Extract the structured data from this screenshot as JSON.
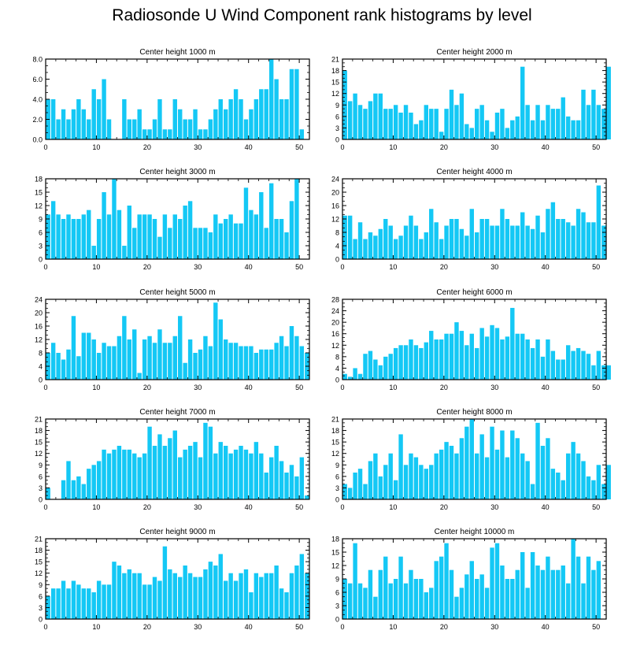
{
  "title": "Radiosonde U Wind Component rank histograms by level",
  "colors": {
    "bar": "#14c8f5",
    "axis": "#000000"
  },
  "chart_data": [
    {
      "type": "bar",
      "title": "Center height 1000 m",
      "xlim": [
        0,
        52
      ],
      "ylim": [
        0,
        8
      ],
      "yticks": [
        "0.0",
        "2.0",
        "4.0",
        "6.0",
        "8.0"
      ],
      "ytick_values": [
        0,
        2,
        4,
        6,
        8
      ],
      "xticks": [
        "0",
        "10",
        "20",
        "30",
        "40",
        "50"
      ],
      "xtick_values": [
        0,
        10,
        20,
        30,
        40,
        50
      ],
      "values": [
        4,
        4,
        2,
        3,
        2,
        3,
        4,
        3,
        2,
        5,
        4,
        6,
        2,
        0,
        0,
        4,
        2,
        2,
        3,
        1,
        1,
        2,
        4,
        1,
        1,
        4,
        3,
        2,
        2,
        3,
        1,
        1,
        2,
        3,
        4,
        3,
        4,
        5,
        4,
        2,
        3,
        4,
        5,
        5,
        8,
        6,
        4,
        4,
        7,
        7,
        1
      ]
    },
    {
      "type": "bar",
      "title": "Center height 2000 m",
      "xlim": [
        0,
        52
      ],
      "ylim": [
        0,
        21
      ],
      "yticks": [
        "0",
        "3",
        "6",
        "9",
        "12",
        "15",
        "18",
        "21"
      ],
      "ytick_values": [
        0,
        3,
        6,
        9,
        12,
        15,
        18,
        21
      ],
      "xticks": [
        "0",
        "10",
        "20",
        "30",
        "40",
        "50"
      ],
      "xtick_values": [
        0,
        10,
        20,
        30,
        40,
        50
      ],
      "values": [
        18,
        10,
        12,
        9,
        8,
        10,
        12,
        12,
        8,
        8,
        9,
        7,
        9,
        7,
        4,
        5,
        9,
        8,
        8,
        2,
        8,
        13,
        9,
        12,
        4,
        3,
        8,
        9,
        5,
        2,
        7,
        8,
        3,
        5,
        6,
        19,
        9,
        5,
        9,
        5,
        9,
        8,
        8,
        11,
        6,
        5,
        5,
        13,
        9,
        13,
        9,
        8,
        19
      ]
    },
    {
      "type": "bar",
      "title": "Center height 3000 m",
      "xlim": [
        0,
        52
      ],
      "ylim": [
        0,
        18
      ],
      "yticks": [
        "0",
        "3",
        "6",
        "9",
        "12",
        "15",
        "18"
      ],
      "ytick_values": [
        0,
        3,
        6,
        9,
        12,
        15,
        18
      ],
      "xticks": [
        "0",
        "10",
        "20",
        "30",
        "40",
        "50"
      ],
      "xtick_values": [
        0,
        10,
        20,
        30,
        40,
        50
      ],
      "values": [
        10,
        13,
        10,
        9,
        10,
        9,
        9,
        10,
        11,
        3,
        9,
        15,
        10,
        18,
        11,
        3,
        12,
        7,
        10,
        10,
        10,
        9,
        5,
        10,
        7,
        10,
        9,
        12,
        13,
        7,
        7,
        7,
        6,
        10,
        8,
        9,
        10,
        8,
        8,
        16,
        11,
        10,
        15,
        7,
        17,
        9,
        9,
        6,
        13,
        18
      ]
    },
    {
      "type": "bar",
      "title": "Center height 4000 m",
      "xlim": [
        0,
        52
      ],
      "ylim": [
        0,
        24
      ],
      "yticks": [
        "0",
        "4",
        "8",
        "12",
        "16",
        "20",
        "24"
      ],
      "ytick_values": [
        0,
        4,
        8,
        12,
        16,
        20,
        24
      ],
      "xticks": [
        "0",
        "10",
        "20",
        "30",
        "40",
        "50"
      ],
      "xtick_values": [
        0,
        10,
        20,
        30,
        40,
        50
      ],
      "values": [
        13,
        13,
        6,
        11,
        6,
        8,
        7,
        9,
        12,
        10,
        6,
        7,
        10,
        13,
        10,
        6,
        8,
        15,
        11,
        6,
        10,
        12,
        12,
        9,
        7,
        15,
        8,
        12,
        12,
        10,
        10,
        15,
        12,
        10,
        10,
        14,
        10,
        9,
        13,
        8,
        15,
        17,
        12,
        12,
        11,
        10,
        15,
        14,
        11,
        11,
        22,
        10
      ]
    },
    {
      "type": "bar",
      "title": "Center height 5000 m",
      "xlim": [
        0,
        52
      ],
      "ylim": [
        0,
        24
      ],
      "yticks": [
        "0",
        "4",
        "8",
        "12",
        "16",
        "20",
        "24"
      ],
      "ytick_values": [
        0,
        4,
        8,
        12,
        16,
        20,
        24
      ],
      "xticks": [
        "0",
        "10",
        "20",
        "30",
        "40",
        "50"
      ],
      "xtick_values": [
        0,
        10,
        20,
        30,
        40,
        50
      ],
      "values": [
        8,
        11,
        8,
        6,
        9,
        19,
        7,
        14,
        14,
        12,
        8,
        11,
        10,
        10,
        13,
        19,
        12,
        15,
        2,
        12,
        13,
        11,
        15,
        11,
        11,
        13,
        19,
        5,
        12,
        8,
        9,
        13,
        10,
        23,
        18,
        12,
        11,
        11,
        10,
        10,
        10,
        8,
        9,
        9,
        9,
        11,
        13,
        10,
        16,
        13,
        10,
        8
      ]
    },
    {
      "type": "bar",
      "title": "Center height 6000 m",
      "xlim": [
        0,
        52
      ],
      "ylim": [
        0,
        28
      ],
      "yticks": [
        "0",
        "4",
        "8",
        "12",
        "16",
        "20",
        "24",
        "28"
      ],
      "ytick_values": [
        0,
        4,
        8,
        12,
        16,
        20,
        24,
        28
      ],
      "xticks": [
        "0",
        "10",
        "20",
        "30",
        "40",
        "50"
      ],
      "xtick_values": [
        0,
        10,
        20,
        30,
        40,
        50
      ],
      "values": [
        2,
        1,
        4,
        2,
        9,
        10,
        7,
        5,
        8,
        9,
        11,
        12,
        12,
        14,
        12,
        11,
        13,
        17,
        14,
        14,
        16,
        16,
        20,
        17,
        12,
        16,
        11,
        18,
        15,
        19,
        18,
        14,
        15,
        25,
        16,
        16,
        14,
        11,
        14,
        8,
        14,
        10,
        7,
        7,
        12,
        10,
        11,
        10,
        9,
        5,
        10,
        5,
        5
      ]
    },
    {
      "type": "bar",
      "title": "Center height 7000 m",
      "xlim": [
        0,
        52
      ],
      "ylim": [
        0,
        21
      ],
      "yticks": [
        "0",
        "3",
        "6",
        "9",
        "12",
        "15",
        "18",
        "21"
      ],
      "ytick_values": [
        0,
        3,
        6,
        9,
        12,
        15,
        18,
        21
      ],
      "xticks": [
        "0",
        "10",
        "20",
        "30",
        "40",
        "50"
      ],
      "xtick_values": [
        0,
        10,
        20,
        30,
        40,
        50
      ],
      "values": [
        3,
        0,
        0,
        5,
        10,
        5,
        6,
        4,
        8,
        9,
        10,
        13,
        12,
        13,
        14,
        13,
        13,
        12,
        11,
        12,
        19,
        14,
        17,
        14,
        16,
        18,
        11,
        13,
        14,
        15,
        11,
        20,
        19,
        12,
        15,
        14,
        12,
        13,
        14,
        13,
        12,
        15,
        12,
        7,
        11,
        14,
        10,
        7,
        9,
        6,
        11,
        1
      ]
    },
    {
      "type": "bar",
      "title": "Center height 8000 m",
      "xlim": [
        0,
        52
      ],
      "ylim": [
        0,
        21
      ],
      "yticks": [
        "0",
        "3",
        "6",
        "9",
        "12",
        "15",
        "18",
        "21"
      ],
      "ytick_values": [
        0,
        3,
        6,
        9,
        12,
        15,
        18,
        21
      ],
      "xticks": [
        "0",
        "10",
        "20",
        "30",
        "40",
        "50"
      ],
      "xtick_values": [
        0,
        10,
        20,
        30,
        40,
        50
      ],
      "values": [
        4,
        3,
        7,
        8,
        4,
        10,
        12,
        6,
        9,
        12,
        5,
        17,
        9,
        12,
        11,
        9,
        8,
        9,
        12,
        13,
        15,
        14,
        12,
        16,
        19,
        21,
        12,
        17,
        11,
        19,
        13,
        18,
        11,
        18,
        16,
        12,
        10,
        4,
        20,
        14,
        16,
        8,
        7,
        5,
        12,
        15,
        12,
        10,
        6,
        5,
        9,
        4,
        9
      ]
    },
    {
      "type": "bar",
      "title": "Center height 9000 m",
      "xlim": [
        0,
        52
      ],
      "ylim": [
        0,
        21
      ],
      "yticks": [
        "0",
        "3",
        "6",
        "9",
        "12",
        "15",
        "18",
        "21"
      ],
      "ytick_values": [
        0,
        3,
        6,
        9,
        12,
        15,
        18,
        21
      ],
      "xticks": [
        "0",
        "10",
        "20",
        "30",
        "40",
        "50"
      ],
      "xtick_values": [
        0,
        10,
        20,
        30,
        40,
        50
      ],
      "values": [
        6,
        8,
        8,
        10,
        8,
        10,
        9,
        8,
        8,
        7,
        10,
        9,
        9,
        15,
        14,
        12,
        13,
        12,
        12,
        9,
        9,
        11,
        10,
        19,
        13,
        12,
        11,
        14,
        12,
        11,
        11,
        13,
        15,
        14,
        17,
        10,
        12,
        10,
        12,
        13,
        7,
        12,
        11,
        12,
        12,
        14,
        8,
        7,
        12,
        14,
        17,
        12
      ]
    },
    {
      "type": "bar",
      "title": "Center height 10000 m",
      "xlim": [
        0,
        52
      ],
      "ylim": [
        0,
        18
      ],
      "yticks": [
        "0",
        "3",
        "6",
        "9",
        "12",
        "15",
        "18"
      ],
      "ytick_values": [
        0,
        3,
        6,
        9,
        12,
        15,
        18
      ],
      "xticks": [
        "0",
        "10",
        "20",
        "30",
        "40",
        "50"
      ],
      "xtick_values": [
        0,
        10,
        20,
        30,
        40,
        50
      ],
      "values": [
        9,
        8,
        17,
        8,
        7,
        11,
        5,
        11,
        14,
        8,
        9,
        14,
        8,
        11,
        9,
        9,
        6,
        7,
        13,
        14,
        17,
        11,
        5,
        7,
        10,
        13,
        9,
        10,
        7,
        16,
        17,
        12,
        9,
        9,
        11,
        15,
        7,
        15,
        12,
        11,
        14,
        11,
        11,
        12,
        8,
        18,
        14,
        8,
        14,
        11,
        13
      ]
    }
  ]
}
